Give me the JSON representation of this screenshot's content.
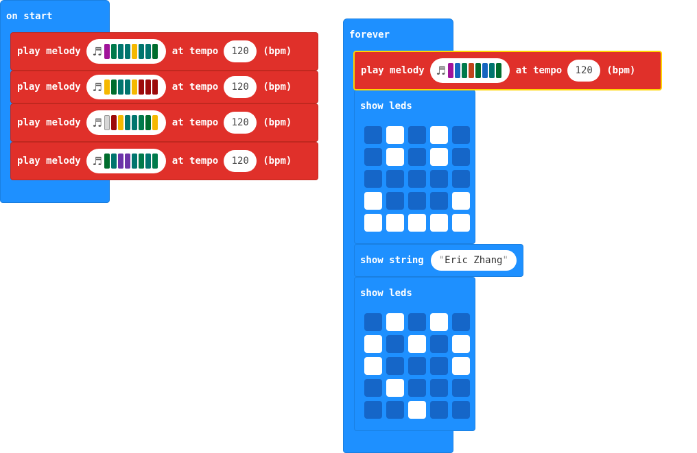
{
  "on_start": {
    "label": "on start",
    "melodies": [
      {
        "play_label": "play melody",
        "at_tempo_label": "at tempo",
        "tempo": "120",
        "bpm_label": "(bpm)",
        "notes": [
          "#a0139a",
          "#007a4b",
          "#00756e",
          "#00756e",
          "#f5b800",
          "#00756e",
          "#00756e",
          "#006d2d"
        ]
      },
      {
        "play_label": "play melody",
        "at_tempo_label": "at tempo",
        "tempo": "120",
        "bpm_label": "(bpm)",
        "notes": [
          "#f5b800",
          "#006d2d",
          "#00756e",
          "#00756e",
          "#f5b800",
          "#9c0a0a",
          "#9c0a0a",
          "#9c0a0a"
        ]
      },
      {
        "play_label": "play melody",
        "at_tempo_label": "at tempo",
        "tempo": "120",
        "bpm_label": "(bpm)",
        "notes": [
          "#d6d6d6",
          "#9c0a0a",
          "#f5b800",
          "#00756e",
          "#00756e",
          "#007a4b",
          "#006d2d",
          "#f5b800"
        ]
      },
      {
        "play_label": "play melody",
        "at_tempo_label": "at tempo",
        "tempo": "120",
        "bpm_label": "(bpm)",
        "notes": [
          "#006d2d",
          "#00756e",
          "#6c33a8",
          "#6c33a8",
          "#00756e",
          "#007a4b",
          "#00756e",
          "#007a4b"
        ]
      }
    ]
  },
  "forever": {
    "label": "forever",
    "melody": {
      "play_label": "play melody",
      "at_tempo_label": "at tempo",
      "tempo": "120",
      "bpm_label": "(bpm)",
      "notes": [
        "#a0139a",
        "#1565c0",
        "#007a4b",
        "#c0441a",
        "#006d2d",
        "#1565c0",
        "#00756e",
        "#006d2d"
      ]
    },
    "show_leds_1": {
      "label": "show leds",
      "grid": [
        [
          0,
          1,
          0,
          1,
          0
        ],
        [
          0,
          1,
          0,
          1,
          0
        ],
        [
          0,
          0,
          0,
          0,
          0
        ],
        [
          1,
          0,
          0,
          0,
          1
        ],
        [
          1,
          1,
          1,
          1,
          1
        ]
      ]
    },
    "show_string": {
      "label": "show string",
      "value": "Eric Zhang",
      "open_quote": "\"",
      "close_quote": "\""
    },
    "show_leds_2": {
      "label": "show leds",
      "grid": [
        [
          0,
          1,
          0,
          1,
          0
        ],
        [
          1,
          0,
          1,
          0,
          1
        ],
        [
          1,
          0,
          0,
          0,
          1
        ],
        [
          0,
          1,
          0,
          0,
          0
        ],
        [
          0,
          0,
          1,
          0,
          0
        ]
      ]
    }
  },
  "icons": {
    "note": "music-note-icon"
  },
  "colors": {
    "event_blue": "#1e90ff",
    "music_red": "#e0302a",
    "selection": "#ffd400",
    "led_off": "#1566c8",
    "led_on": "#ffffff"
  }
}
